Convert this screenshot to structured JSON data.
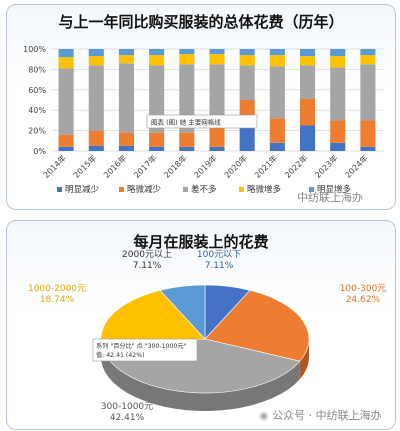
{
  "chart_data": [
    {
      "type": "bar",
      "stacked": true,
      "title": "与上一年同比购买服装的总体花费（历年）",
      "categories": [
        "2014年",
        "2015年",
        "2016年",
        "2017年",
        "2018年",
        "2019年",
        "2020年",
        "2021年",
        "2022年",
        "2023年",
        "2024年"
      ],
      "ylim": [
        0,
        100
      ],
      "yticks": [
        "0%",
        "20%",
        "40%",
        "60%",
        "80%",
        "100%"
      ],
      "grid": true,
      "legend_position": "bottom",
      "series": [
        {
          "name": "明显减少",
          "color": "#4472c4",
          "values": [
            4,
            5,
            5,
            4,
            4,
            4,
            23,
            8,
            25,
            8,
            4
          ]
        },
        {
          "name": "略微减少",
          "color": "#ed7d31",
          "values": [
            12,
            15,
            13,
            14,
            14,
            20,
            27,
            24,
            26,
            22,
            26
          ]
        },
        {
          "name": "差不多",
          "color": "#a5a5a5",
          "values": [
            65,
            64,
            68,
            66,
            67,
            61,
            34,
            51,
            33,
            52,
            55
          ]
        },
        {
          "name": "略微增多",
          "color": "#ffc000",
          "values": [
            11,
            9,
            8,
            10,
            10,
            10,
            10,
            11,
            9,
            11,
            9
          ]
        },
        {
          "name": "明显增多",
          "color": "#5b9bd5",
          "values": [
            8,
            7,
            6,
            6,
            5,
            5,
            6,
            6,
            7,
            7,
            6
          ]
        }
      ],
      "tooltip": "图表 (图) 她 主要网格线"
    },
    {
      "type": "pie",
      "title": "每月在服装上的花费",
      "slices": [
        {
          "label": "100元以下",
          "value": 7.11,
          "pct": "7.11%",
          "color": "#4472c4",
          "label_color": "#2e5fa8"
        },
        {
          "label": "100-300元",
          "value": 24.62,
          "pct": "24.62%",
          "color": "#ed7d31",
          "label_color": "#e0741f"
        },
        {
          "label": "300-1000元",
          "value": 42.41,
          "pct": "42.41%",
          "color": "#a5a5a5",
          "label_color": "#555555"
        },
        {
          "label": "1000-2000元",
          "value": 18.74,
          "pct": "18.74%",
          "color": "#ffc000",
          "label_color": "#e5a800"
        },
        {
          "label": "2000元以上",
          "value": 7.11,
          "pct": "7.11%",
          "color": "#5b9bd5",
          "label_color": "#333333"
        }
      ],
      "tooltip_lines": [
        "系列 \"百分比\" 点 \"300-1000元\"",
        "值: 42.41 (42%)"
      ]
    }
  ],
  "watermark": {
    "top": "中纺联上海办",
    "bottom_prefix": "公众号 ·",
    "bottom": "中纺联上海办"
  }
}
